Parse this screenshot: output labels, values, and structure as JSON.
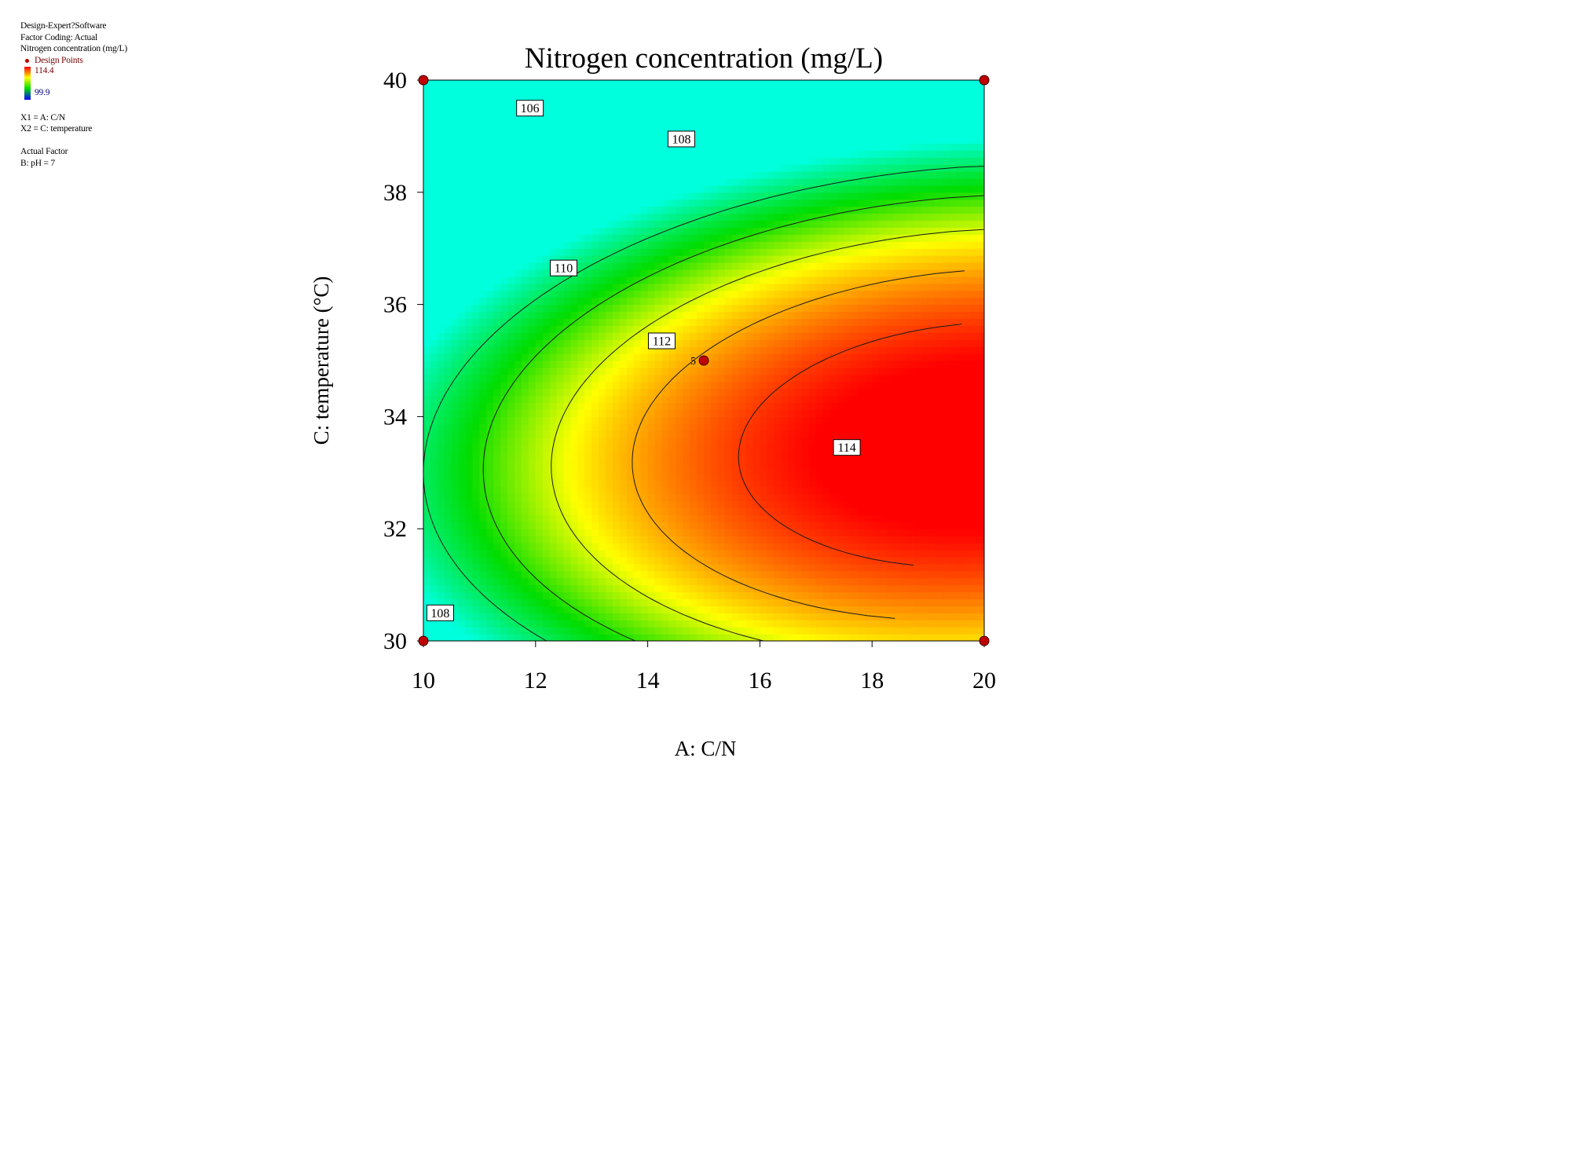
{
  "info_panel": {
    "software": "Design-Expert?Software",
    "factor_coding": "Factor Coding: Actual",
    "response": "Nitrogen concentration (mg/L)",
    "design_points_label": "Design Points",
    "gradient_max": "114.4",
    "gradient_min": "99.9",
    "x1": "X1 = A: C/N",
    "x2": "X2 = C: temperature",
    "actual_factor_heading": "Actual Factor",
    "actual_factor_value": "B: pH = 7"
  },
  "colors": {
    "high": "#ff0000",
    "mid": "#ffff00",
    "low": "#00dd00",
    "lowest": "#00ffdd",
    "design_point": "#c00000"
  },
  "chart_data": {
    "type": "contour",
    "title": "Nitrogen concentration (mg/L)",
    "xlabel": "A: C/N",
    "ylabel": "C: temperature (°C)",
    "xlim": [
      10,
      20
    ],
    "ylim": [
      30,
      40
    ],
    "x_ticks": [
      10,
      12,
      14,
      16,
      18,
      20
    ],
    "y_ticks": [
      30,
      32,
      34,
      36,
      38,
      40
    ],
    "x_tick_labels": [
      "10",
      "12",
      "14",
      "16",
      "18",
      "20"
    ],
    "y_tick_labels": [
      "30",
      "32",
      "34",
      "36",
      "38",
      "40"
    ],
    "response_range": [
      99.9,
      114.4
    ],
    "contour_levels": [
      106,
      108,
      110,
      112,
      114
    ],
    "contour_labels": [
      {
        "text": "106",
        "x": 11.9,
        "y": 39.5
      },
      {
        "text": "108",
        "x": 14.6,
        "y": 38.95
      },
      {
        "text": "110",
        "x": 12.5,
        "y": 36.65
      },
      {
        "text": "112",
        "x": 14.25,
        "y": 35.35
      },
      {
        "text": "114",
        "x": 17.55,
        "y": 33.45
      },
      {
        "text": "108",
        "x": 10.3,
        "y": 30.5
      }
    ],
    "design_points": [
      {
        "x": 10,
        "y": 30
      },
      {
        "x": 20,
        "y": 30
      },
      {
        "x": 10,
        "y": 40
      },
      {
        "x": 20,
        "y": 40
      },
      {
        "x": 15,
        "y": 35,
        "count": "5"
      }
    ],
    "grid": false,
    "legend": "top-left"
  }
}
